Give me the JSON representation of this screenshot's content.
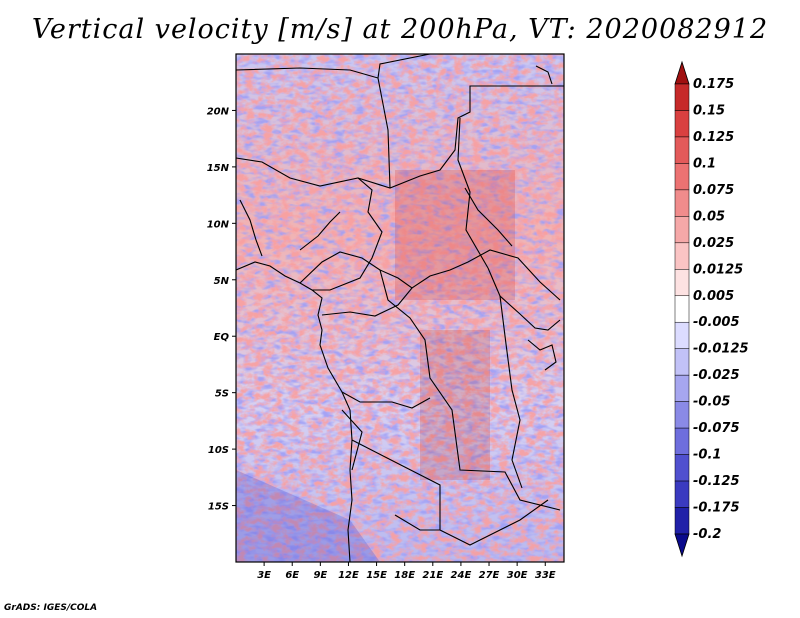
{
  "title": "Vertical velocity [m/s] at 200hPa, VT: 2020082912",
  "credit": "GrADS: IGES/COLA",
  "map": {
    "lon_range": [
      0,
      35
    ],
    "lat_range": [
      -20,
      25
    ],
    "lon_ticks": [
      {
        "value": 3,
        "label": "3E"
      },
      {
        "value": 6,
        "label": "6E"
      },
      {
        "value": 9,
        "label": "9E"
      },
      {
        "value": 12,
        "label": "12E"
      },
      {
        "value": 15,
        "label": "15E"
      },
      {
        "value": 18,
        "label": "18E"
      },
      {
        "value": 21,
        "label": "21E"
      },
      {
        "value": 24,
        "label": "24E"
      },
      {
        "value": 27,
        "label": "27E"
      },
      {
        "value": 30,
        "label": "30E"
      },
      {
        "value": 33,
        "label": "33E"
      }
    ],
    "lat_ticks": [
      {
        "value": 20,
        "label": "20N"
      },
      {
        "value": 15,
        "label": "15N"
      },
      {
        "value": 10,
        "label": "10N"
      },
      {
        "value": 5,
        "label": "5N"
      },
      {
        "value": 0,
        "label": "EQ"
      },
      {
        "value": -5,
        "label": "5S"
      },
      {
        "value": -10,
        "label": "10S"
      },
      {
        "value": -15,
        "label": "15S"
      }
    ]
  },
  "colorbar": {
    "labels": [
      "0.175",
      "0.15",
      "0.125",
      "0.1",
      "0.075",
      "0.05",
      "0.025",
      "0.0125",
      "0.005",
      "-0.005",
      "-0.0125",
      "-0.025",
      "-0.05",
      "-0.075",
      "-0.1",
      "-0.125",
      "-0.175",
      "-0.2"
    ],
    "colors": [
      "#a01010",
      "#c62a2a",
      "#d94040",
      "#e35a5a",
      "#ec7272",
      "#f08c8c",
      "#f5a8a8",
      "#fac4c4",
      "#fde2e2",
      "#ffffff",
      "#dcdcff",
      "#c2c2f7",
      "#a6a6ef",
      "#8a8ae6",
      "#6e6edd",
      "#5050cf",
      "#3a3ac0",
      "#2020a8",
      "#0a0a8c"
    ]
  }
}
